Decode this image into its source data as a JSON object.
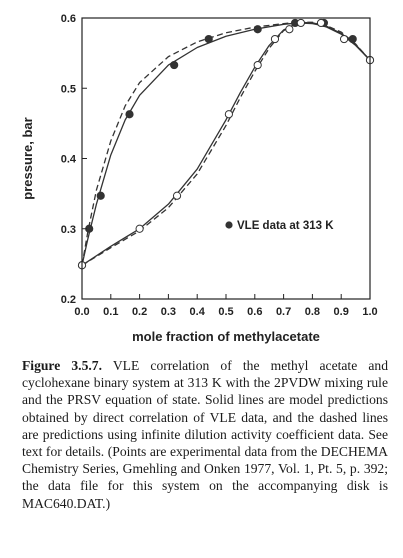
{
  "chart_data": {
    "type": "line",
    "xlabel": "mole fraction of methylacetate",
    "ylabel": "pressure, bar",
    "xlim": [
      0.0,
      1.0
    ],
    "ylim": [
      0.2,
      0.6
    ],
    "x_ticks": [
      "0.0",
      "0.1",
      "0.2",
      "0.3",
      "0.4",
      "0.5",
      "0.6",
      "0.7",
      "0.8",
      "0.9",
      "1.0"
    ],
    "y_ticks": [
      "0.2",
      "0.3",
      "0.4",
      "0.5",
      "0.6"
    ],
    "legend": {
      "label": "VLE data at 313 K",
      "position": "right"
    },
    "series": [
      {
        "kind": "scatter",
        "marker": "filled-circle",
        "x": [
          0.0,
          0.025,
          0.065,
          0.165,
          0.32,
          0.44,
          0.61,
          0.74,
          0.84,
          0.94,
          1.0
        ],
        "y": [
          0.248,
          0.3,
          0.347,
          0.463,
          0.533,
          0.57,
          0.584,
          0.593,
          0.593,
          0.57,
          0.54
        ]
      },
      {
        "kind": "scatter",
        "marker": "open-circle",
        "x": [
          0.0,
          0.2,
          0.33,
          0.51,
          0.61,
          0.67,
          0.72,
          0.76,
          0.83,
          0.91,
          1.0
        ],
        "y": [
          0.248,
          0.3,
          0.347,
          0.463,
          0.533,
          0.57,
          0.584,
          0.593,
          0.593,
          0.57,
          0.54
        ]
      },
      {
        "kind": "line",
        "style": "solid",
        "x": [
          0.0,
          0.02,
          0.05,
          0.1,
          0.15,
          0.2,
          0.3,
          0.4,
          0.5,
          0.6,
          0.7,
          0.75,
          0.8,
          0.85,
          0.9,
          0.95,
          1.0
        ],
        "y": [
          0.248,
          0.285,
          0.335,
          0.405,
          0.455,
          0.49,
          0.533,
          0.558,
          0.574,
          0.584,
          0.591,
          0.593,
          0.592,
          0.588,
          0.578,
          0.562,
          0.54
        ]
      },
      {
        "kind": "line",
        "style": "solid",
        "x": [
          0.0,
          0.1,
          0.2,
          0.3,
          0.4,
          0.5,
          0.55,
          0.6,
          0.65,
          0.7,
          0.75,
          0.8,
          0.85,
          0.9,
          0.95,
          1.0
        ],
        "y": [
          0.248,
          0.275,
          0.3,
          0.335,
          0.385,
          0.455,
          0.494,
          0.53,
          0.561,
          0.583,
          0.593,
          0.593,
          0.587,
          0.577,
          0.561,
          0.54
        ]
      },
      {
        "kind": "line",
        "style": "dashed",
        "x": [
          0.0,
          0.02,
          0.05,
          0.1,
          0.15,
          0.2,
          0.3,
          0.4,
          0.5,
          0.6,
          0.7,
          0.75,
          0.8,
          0.85,
          0.9,
          0.95,
          1.0
        ],
        "y": [
          0.248,
          0.295,
          0.355,
          0.425,
          0.475,
          0.508,
          0.545,
          0.566,
          0.579,
          0.587,
          0.592,
          0.594,
          0.593,
          0.589,
          0.58,
          0.563,
          0.54
        ]
      },
      {
        "kind": "line",
        "style": "dashed",
        "x": [
          0.0,
          0.1,
          0.2,
          0.3,
          0.4,
          0.5,
          0.55,
          0.6,
          0.65,
          0.7,
          0.75,
          0.8,
          0.85,
          0.9,
          0.95,
          1.0
        ],
        "y": [
          0.248,
          0.273,
          0.297,
          0.33,
          0.378,
          0.447,
          0.487,
          0.524,
          0.557,
          0.582,
          0.594,
          0.594,
          0.588,
          0.578,
          0.562,
          0.54
        ]
      }
    ]
  },
  "caption": {
    "label": "Figure 3.5.7.",
    "text": " VLE correlation of the methyl acetate and cyclohexane binary system at 313 K with the 2PVDW mixing rule and the PRSV equation of state. Solid lines are model predictions obtained by direct correlation of VLE data, and the dashed lines are predictions using infinite dilution activity coefficient data. See text for details. (Points are experimental data from the DECHEMA Chemistry Series, Gmehling and Onken 1977, Vol. 1, Pt. 5, p. 392; the data file for this system on the accompanying disk is MAC640.DAT.)"
  }
}
